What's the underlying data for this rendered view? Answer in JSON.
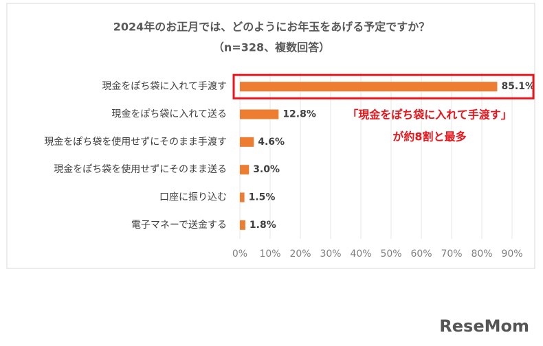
{
  "chart_data": {
    "type": "bar",
    "orientation": "horizontal",
    "title": "2024年のお正月では、どのようにお年玉をあげる予定ですか？",
    "subtitle": "（n=328、複数回答）",
    "categories": [
      "現金をぽち袋に入れて手渡す",
      "現金をぽち袋に入れて送る",
      "現金をぽち袋を使用せずにそのまま手渡す",
      "現金をぽち袋を使用せずにそのまま送る",
      "口座に振り込む",
      "電子マネーで送金する"
    ],
    "values": [
      85.1,
      12.8,
      4.6,
      3.0,
      1.5,
      1.8
    ],
    "value_labels": [
      "85.1%",
      "12.8%",
      "4.6%",
      "3.0%",
      "1.5%",
      "1.8%"
    ],
    "color": "#ed7d31",
    "xlim": [
      0,
      90
    ],
    "xticks": [
      {
        "value": 0,
        "label": "0%"
      },
      {
        "value": 10,
        "label": "10%"
      },
      {
        "value": 20,
        "label": "20%"
      },
      {
        "value": 30,
        "label": "30%"
      },
      {
        "value": 40,
        "label": "40%"
      },
      {
        "value": 50,
        "label": "50%"
      },
      {
        "value": 60,
        "label": "60%"
      },
      {
        "value": 70,
        "label": "70%"
      },
      {
        "value": 80,
        "label": "80%"
      },
      {
        "value": 90,
        "label": "90%"
      }
    ],
    "grid": true,
    "annotation": [
      "「現金をぽち袋に入れて手渡す」",
      "が約8割と最多"
    ],
    "highlight_color": "#e8161c"
  },
  "watermark": "ReseMom"
}
